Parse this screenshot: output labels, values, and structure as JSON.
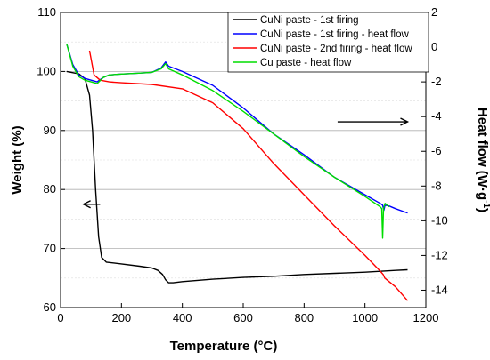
{
  "chart_data": {
    "type": "line",
    "xlabel": "Temperature (°C)",
    "ylabel_left": "Weight (%)",
    "ylabel_right_main": "Heat flow (W·g",
    "ylabel_right_sup": "-1",
    "ylabel_right_close": ")",
    "xlim": [
      0,
      1200
    ],
    "ylim_left": [
      60,
      110
    ],
    "ylim_right": [
      -15,
      2
    ],
    "x_ticks": [
      0,
      200,
      400,
      600,
      800,
      1000,
      1200
    ],
    "y_left_ticks": [
      60,
      70,
      80,
      90,
      100,
      110
    ],
    "y_right_ticks": [
      2,
      0,
      -2,
      -4,
      -6,
      -8,
      -10,
      -12,
      -14
    ],
    "grid": "horizontal",
    "legend_position": "top-right",
    "series": [
      {
        "name": "CuNi paste - 1st firing",
        "axis": "left",
        "color": "#000000",
        "points": [
          [
            20,
            100.0
          ],
          [
            60,
            99.6
          ],
          [
            80,
            98.8
          ],
          [
            95,
            96
          ],
          [
            105,
            90
          ],
          [
            115,
            80
          ],
          [
            125,
            72
          ],
          [
            135,
            68.5
          ],
          [
            150,
            67.7
          ],
          [
            200,
            67.4
          ],
          [
            260,
            67.0
          ],
          [
            300,
            66.7
          ],
          [
            320,
            66.3
          ],
          [
            335,
            65.6
          ],
          [
            345,
            64.7
          ],
          [
            355,
            64.2
          ],
          [
            370,
            64.2
          ],
          [
            400,
            64.4
          ],
          [
            500,
            64.8
          ],
          [
            600,
            65.1
          ],
          [
            700,
            65.3
          ],
          [
            800,
            65.6
          ],
          [
            900,
            65.8
          ],
          [
            1000,
            66.0
          ],
          [
            1100,
            66.3
          ],
          [
            1140,
            66.4
          ]
        ]
      },
      {
        "name": "CuNi paste - 1st firing - heat flow",
        "axis": "right",
        "color": "#0000ff",
        "points": [
          [
            20,
            0.2
          ],
          [
            40,
            -1.0
          ],
          [
            60,
            -1.6
          ],
          [
            80,
            -1.8
          ],
          [
            100,
            -1.9
          ],
          [
            120,
            -2.0
          ],
          [
            140,
            -1.75
          ],
          [
            160,
            -1.6
          ],
          [
            200,
            -1.55
          ],
          [
            250,
            -1.5
          ],
          [
            300,
            -1.45
          ],
          [
            330,
            -1.2
          ],
          [
            345,
            -0.85
          ],
          [
            355,
            -1.1
          ],
          [
            400,
            -1.4
          ],
          [
            500,
            -2.2
          ],
          [
            600,
            -3.5
          ],
          [
            700,
            -5.0
          ],
          [
            800,
            -6.2
          ],
          [
            900,
            -7.5
          ],
          [
            1000,
            -8.5
          ],
          [
            1050,
            -9.0
          ],
          [
            1058,
            -9.1
          ],
          [
            1062,
            -9.4
          ],
          [
            1066,
            -9.1
          ],
          [
            1080,
            -9.15
          ],
          [
            1100,
            -9.3
          ],
          [
            1140,
            -9.55
          ]
        ]
      },
      {
        "name": "CuNi paste - 2nd firing - heat flow",
        "axis": "right",
        "color": "#ff0000",
        "points": [
          [
            95,
            -0.2
          ],
          [
            110,
            -1.6
          ],
          [
            130,
            -1.9
          ],
          [
            160,
            -2.0
          ],
          [
            200,
            -2.05
          ],
          [
            300,
            -2.15
          ],
          [
            400,
            -2.4
          ],
          [
            500,
            -3.2
          ],
          [
            600,
            -4.7
          ],
          [
            700,
            -6.7
          ],
          [
            800,
            -8.5
          ],
          [
            900,
            -10.3
          ],
          [
            1000,
            -12.0
          ],
          [
            1050,
            -12.9
          ],
          [
            1060,
            -13.1
          ],
          [
            1065,
            -13.3
          ],
          [
            1100,
            -13.8
          ],
          [
            1140,
            -14.6
          ]
        ]
      },
      {
        "name": "Cu paste - heat flow",
        "axis": "right",
        "color": "#00dd00",
        "points": [
          [
            20,
            0.2
          ],
          [
            40,
            -1.1
          ],
          [
            60,
            -1.7
          ],
          [
            80,
            -1.9
          ],
          [
            100,
            -2.0
          ],
          [
            120,
            -2.1
          ],
          [
            140,
            -1.75
          ],
          [
            160,
            -1.6
          ],
          [
            200,
            -1.55
          ],
          [
            250,
            -1.5
          ],
          [
            300,
            -1.45
          ],
          [
            330,
            -1.25
          ],
          [
            345,
            -0.95
          ],
          [
            355,
            -1.25
          ],
          [
            400,
            -1.6
          ],
          [
            500,
            -2.5
          ],
          [
            600,
            -3.7
          ],
          [
            700,
            -5.0
          ],
          [
            800,
            -6.3
          ],
          [
            900,
            -7.5
          ],
          [
            1000,
            -8.6
          ],
          [
            1050,
            -9.2
          ],
          [
            1055,
            -9.3
          ],
          [
            1058,
            -11.0
          ],
          [
            1061,
            -9.3
          ],
          [
            1066,
            -9.0
          ],
          [
            1080,
            -9.2
          ]
        ]
      }
    ],
    "annotations": [
      {
        "name": "left-arrow",
        "direction": "left",
        "x_from": 130,
        "x_to": 75,
        "axis": "left",
        "y": 77.5
      },
      {
        "name": "right-arrow",
        "direction": "right",
        "x_from": 910,
        "x_to": 1140,
        "axis": "right",
        "y": -4.3
      }
    ]
  }
}
